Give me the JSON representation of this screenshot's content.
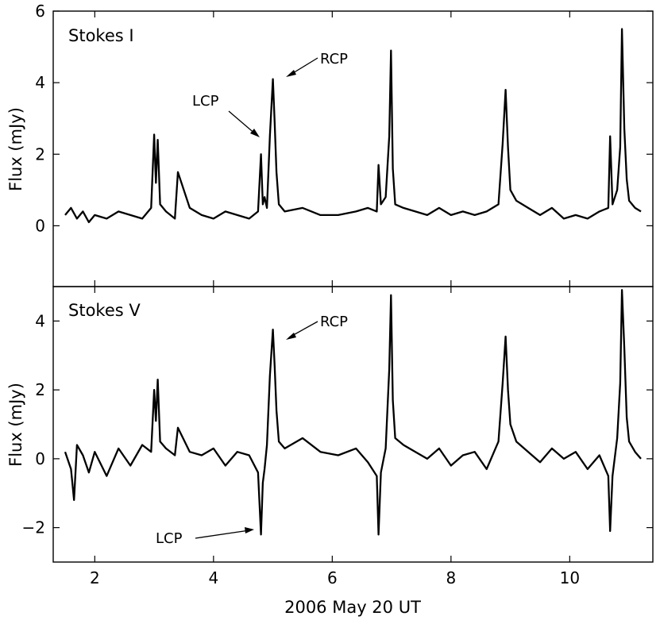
{
  "chart_data": [
    {
      "type": "line",
      "panel_label": "Stokes I",
      "ylabel": "Flux (mJy)",
      "xlabel": "",
      "xlim": [
        1.3,
        11.4
      ],
      "ylim": [
        -1.7,
        6.0
      ],
      "xticks": [
        2,
        4,
        6,
        8,
        10
      ],
      "yticks": [
        0,
        2,
        4,
        6
      ],
      "ytick_labels": [
        "0",
        "2",
        "4",
        "6"
      ],
      "annotations": [
        {
          "text": "RCP",
          "x": 5.05,
          "y": 4.05
        },
        {
          "text": "LCP",
          "x": 4.85,
          "y": 2.35
        }
      ],
      "series": [
        {
          "x": [
            1.5,
            1.6,
            1.7,
            1.8,
            1.9,
            2.0,
            2.2,
            2.4,
            2.6,
            2.8,
            2.95,
            3.0,
            3.03,
            3.06,
            3.1,
            3.2,
            3.35,
            3.4,
            3.6,
            3.8,
            4.0,
            4.2,
            4.4,
            4.6,
            4.75,
            4.8,
            4.83,
            4.86,
            4.9,
            4.95,
            5.0,
            5.03,
            5.06,
            5.1,
            5.2,
            5.5,
            5.8,
            6.1,
            6.4,
            6.6,
            6.75,
            6.78,
            6.82,
            6.9,
            6.96,
            6.99,
            7.02,
            7.06,
            7.2,
            7.4,
            7.6,
            7.8,
            8.0,
            8.2,
            8.4,
            8.6,
            8.8,
            8.87,
            8.92,
            8.96,
            9.0,
            9.1,
            9.3,
            9.5,
            9.7,
            9.9,
            10.1,
            10.3,
            10.5,
            10.65,
            10.68,
            10.72,
            10.8,
            10.85,
            10.88,
            10.92,
            10.96,
            11.0,
            11.1,
            11.2
          ],
          "y": [
            0.3,
            0.5,
            0.2,
            0.4,
            0.1,
            0.3,
            0.2,
            0.4,
            0.3,
            0.2,
            0.5,
            2.55,
            1.2,
            2.4,
            0.6,
            0.4,
            0.2,
            1.5,
            0.5,
            0.3,
            0.2,
            0.4,
            0.3,
            0.2,
            0.4,
            2.0,
            0.6,
            0.8,
            0.5,
            2.5,
            4.1,
            2.9,
            1.5,
            0.6,
            0.4,
            0.5,
            0.3,
            0.3,
            0.4,
            0.5,
            0.4,
            1.7,
            0.6,
            0.8,
            2.5,
            4.9,
            1.6,
            0.6,
            0.5,
            0.4,
            0.3,
            0.5,
            0.3,
            0.4,
            0.3,
            0.4,
            0.6,
            2.3,
            3.8,
            2.2,
            1.0,
            0.7,
            0.5,
            0.3,
            0.5,
            0.2,
            0.3,
            0.2,
            0.4,
            0.5,
            2.5,
            0.6,
            1.0,
            2.2,
            5.5,
            2.7,
            1.3,
            0.7,
            0.5,
            0.4
          ]
        }
      ]
    },
    {
      "type": "line",
      "panel_label": "Stokes V",
      "ylabel": "Flux (mJy)",
      "xlabel": "2006 May 20 UT",
      "xlim": [
        1.3,
        11.4
      ],
      "ylim": [
        -3.0,
        5.0
      ],
      "xticks": [
        2,
        4,
        6,
        8,
        10
      ],
      "xtick_labels": [
        "2",
        "4",
        "6",
        "8",
        "10"
      ],
      "yticks": [
        -2,
        0,
        2,
        4
      ],
      "ytick_labels": [
        "−2",
        "0",
        "2",
        "4"
      ],
      "annotations": [
        {
          "text": "RCP",
          "x": 5.05,
          "y": 3.65
        },
        {
          "text": "LCP",
          "x": 4.82,
          "y": -2.1
        }
      ],
      "series": [
        {
          "x": [
            1.5,
            1.6,
            1.65,
            1.7,
            1.8,
            1.9,
            2.0,
            2.2,
            2.4,
            2.6,
            2.8,
            2.95,
            3.0,
            3.03,
            3.06,
            3.1,
            3.2,
            3.35,
            3.4,
            3.6,
            3.8,
            4.0,
            4.2,
            4.4,
            4.6,
            4.75,
            4.8,
            4.83,
            4.86,
            4.9,
            4.95,
            5.0,
            5.03,
            5.06,
            5.1,
            5.2,
            5.5,
            5.8,
            6.1,
            6.4,
            6.6,
            6.75,
            6.78,
            6.82,
            6.9,
            6.96,
            6.99,
            7.02,
            7.06,
            7.2,
            7.4,
            7.6,
            7.8,
            8.0,
            8.2,
            8.4,
            8.6,
            8.8,
            8.87,
            8.92,
            8.96,
            9.0,
            9.1,
            9.3,
            9.5,
            9.7,
            9.9,
            10.1,
            10.3,
            10.5,
            10.65,
            10.68,
            10.72,
            10.8,
            10.85,
            10.88,
            10.92,
            10.96,
            11.0,
            11.1,
            11.2
          ],
          "y": [
            0.2,
            -0.3,
            -1.2,
            0.4,
            0.1,
            -0.4,
            0.2,
            -0.5,
            0.3,
            -0.2,
            0.4,
            0.2,
            2.0,
            1.1,
            2.3,
            0.5,
            0.3,
            0.1,
            0.9,
            0.2,
            0.1,
            0.3,
            -0.2,
            0.2,
            0.1,
            -0.4,
            -2.2,
            -0.7,
            -0.3,
            0.4,
            2.4,
            3.75,
            2.7,
            1.4,
            0.5,
            0.3,
            0.6,
            0.2,
            0.1,
            0.3,
            -0.1,
            -0.5,
            -2.2,
            -0.4,
            0.3,
            2.6,
            4.75,
            1.7,
            0.6,
            0.4,
            0.2,
            0.0,
            0.3,
            -0.2,
            0.1,
            0.2,
            -0.3,
            0.5,
            2.2,
            3.55,
            2.0,
            1.0,
            0.5,
            0.2,
            -0.1,
            0.3,
            0.0,
            0.2,
            -0.3,
            0.1,
            -0.5,
            -2.1,
            -0.5,
            0.6,
            2.2,
            4.9,
            3.2,
            1.2,
            0.5,
            0.2,
            0.0
          ]
        }
      ]
    }
  ]
}
